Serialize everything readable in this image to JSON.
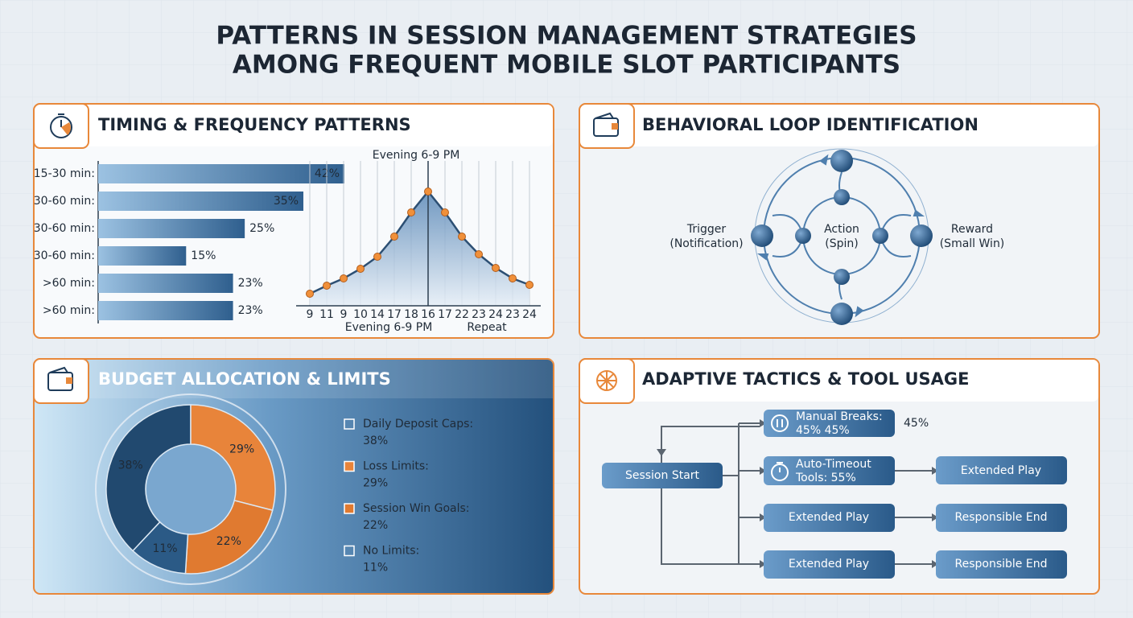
{
  "title": [
    "PATTERNS IN SESSION MANAGEMENT STRATEGIES",
    "AMONG FREQUENT MOBILE SLOT PARTICIPANTS"
  ],
  "panels": {
    "timing": {
      "heading": "TIMING & FREQUENCY PATTERNS"
    },
    "loop": {
      "heading": "BEHAVIORAL LOOP IDENTIFICATION",
      "nodes": [
        {
          "label": "Trigger",
          "sub": "(Notification)"
        },
        {
          "label": "Action",
          "sub": "(Spin)"
        },
        {
          "label": "Reward",
          "sub": "(Small Win)"
        }
      ]
    },
    "budget": {
      "heading": "BUDGET ALLOCATION & LIMITS"
    },
    "tactics": {
      "heading": "ADAPTIVE TACTICS & TOOL USAGE",
      "nodes": [
        {
          "lines": [
            "Session Start"
          ]
        },
        {
          "lines": [
            "Manual Breaks:",
            "45% 45%"
          ]
        },
        {
          "lines": [
            "Auto-Timeout",
            "Tools: 55%"
          ]
        },
        {
          "lines": [
            "Extended Play"
          ]
        },
        {
          "lines": [
            "Extended Play"
          ]
        },
        {
          "lines": [
            "Extended Play"
          ]
        },
        {
          "lines": [
            "Responsible End"
          ]
        },
        {
          "lines": [
            "Responsible End"
          ]
        }
      ],
      "note": "45%"
    }
  },
  "chart_data": [
    {
      "type": "bar",
      "orientation": "horizontal",
      "categories": [
        "15-30 min:",
        "30-60 min:",
        "30-60 min:",
        "30-60 min:",
        ">60 min:",
        ">60 min:"
      ],
      "values": [
        42,
        35,
        25,
        15,
        23,
        23
      ],
      "value_labels": [
        "42%",
        "35%",
        "25%",
        "15%",
        "23%",
        "23%"
      ],
      "color": "#3f73a6"
    },
    {
      "type": "line",
      "categories": [
        "9",
        "11",
        "9",
        "10",
        "14",
        "17",
        "18",
        "16",
        "17",
        "22",
        "23",
        "24",
        "23",
        "24"
      ],
      "values": [
        15,
        25,
        34,
        46,
        61,
        86,
        116,
        142,
        116,
        86,
        64,
        47,
        34,
        26
      ],
      "color": "#2c4f73",
      "marker_color": "#f0903a",
      "area": true,
      "grid": true,
      "annotations": [
        "Evening 6-9 PM",
        "Evening 6-9 PM",
        "Repeat"
      ]
    },
    {
      "type": "pie",
      "donut": true,
      "categories": [
        "Daily Deposit Caps:",
        "Loss Limits:",
        "Session Win Goals:",
        "No Limits:"
      ],
      "values": [
        38,
        29,
        22,
        11
      ],
      "value_labels": [
        "38%",
        "29%",
        "22%",
        "11%"
      ],
      "colors": [
        "#21496f",
        "#e8843a",
        "#e07a30",
        "#2b5a86"
      ]
    }
  ]
}
